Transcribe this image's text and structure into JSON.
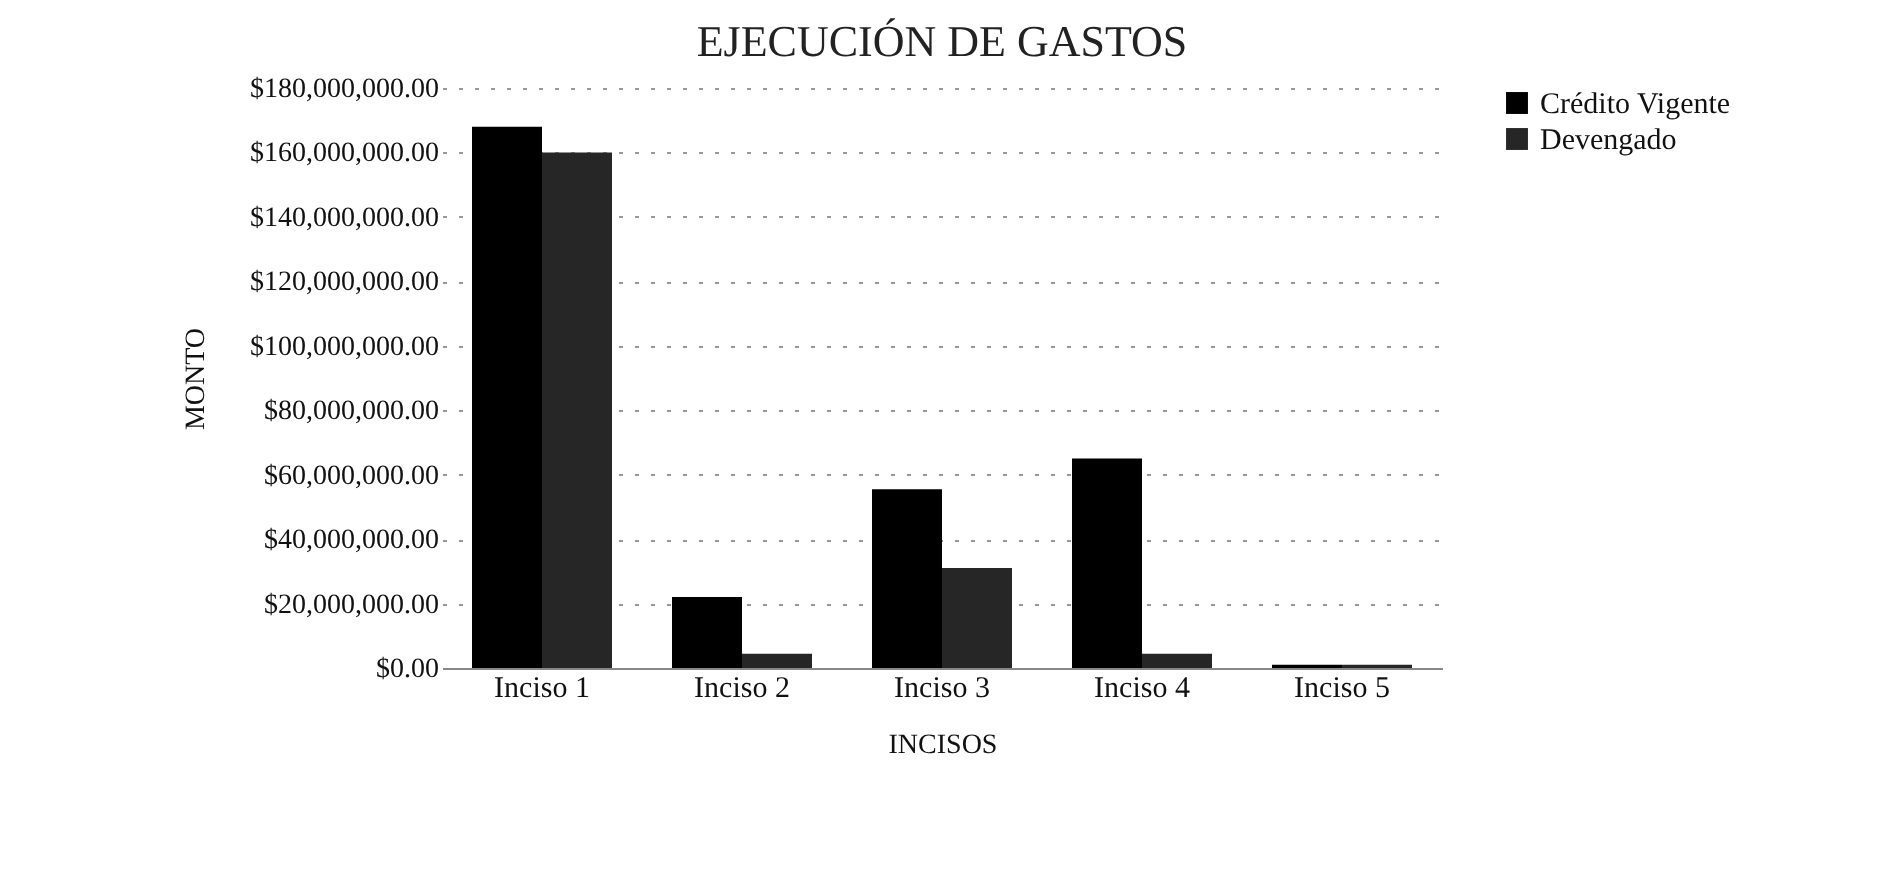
{
  "chart_data": {
    "type": "bar",
    "title": "EJECUCIÓN DE GASTOS",
    "xlabel": "INCISOS",
    "ylabel": "MONTO",
    "categories": [
      "Inciso 1",
      "Inciso 2",
      "Inciso 3",
      "Inciso 4",
      "Inciso 5"
    ],
    "series": [
      {
        "name": "Crédito Vigente",
        "color": "#000000",
        "values": [
          168000000,
          22000000,
          55500000,
          65000000,
          1000000
        ]
      },
      {
        "name": "Devengado",
        "color": "#262626",
        "values": [
          160000000,
          4400000,
          31000000,
          4400000,
          1000000
        ]
      }
    ],
    "ylim": [
      0,
      180000000
    ],
    "yticks": [
      {
        "value": 0,
        "label": "$0.00"
      },
      {
        "value": 20000000,
        "label": "$20,000,000.00"
      },
      {
        "value": 40000000,
        "label": "$40,000,000.00"
      },
      {
        "value": 60000000,
        "label": "$60,000,000.00"
      },
      {
        "value": 80000000,
        "label": "$80,000,000.00"
      },
      {
        "value": 100000000,
        "label": "$100,000,000.00"
      },
      {
        "value": 120000000,
        "label": "$120,000,000.00"
      },
      {
        "value": 140000000,
        "label": "$140,000,000.00"
      },
      {
        "value": 160000000,
        "label": "$160,000,000.00"
      },
      {
        "value": 180000000,
        "label": "$180,000,000.00"
      }
    ],
    "grid": "y",
    "legend": "right"
  }
}
